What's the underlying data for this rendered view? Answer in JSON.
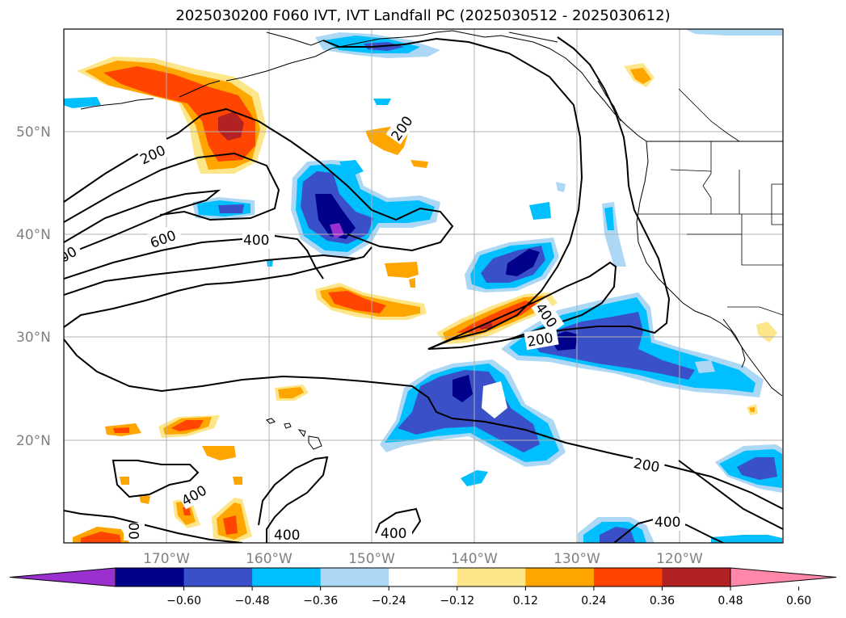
{
  "title": "2025030200 F060 IVT, IVT Landfall PC (2025030512 - 2025030612)",
  "lat_labels": [
    "50°N",
    "40°N",
    "30°N",
    "20°N"
  ],
  "lon_labels": [
    "170°W",
    "160°W",
    "150°W",
    "140°W",
    "130°W",
    "120°W"
  ],
  "contour_labels": [
    "200",
    "600",
    "400",
    "200",
    "200",
    "400",
    "200",
    "400",
    "200",
    "400",
    "400",
    "400",
    "00",
    "00"
  ],
  "colorbar": {
    "ticks": [
      "−0.60",
      "−0.48",
      "−0.36",
      "−0.24",
      "−0.12",
      "0.12",
      "0.24",
      "0.36",
      "0.48",
      "0.60"
    ],
    "colors": [
      "#9b30d0",
      "#00008b",
      "#3a50c8",
      "#00bfff",
      "#add8f5",
      "#ffffff",
      "#fde68a",
      "#ffa500",
      "#ff4500",
      "#b22222",
      "#ff88aa"
    ]
  }
}
